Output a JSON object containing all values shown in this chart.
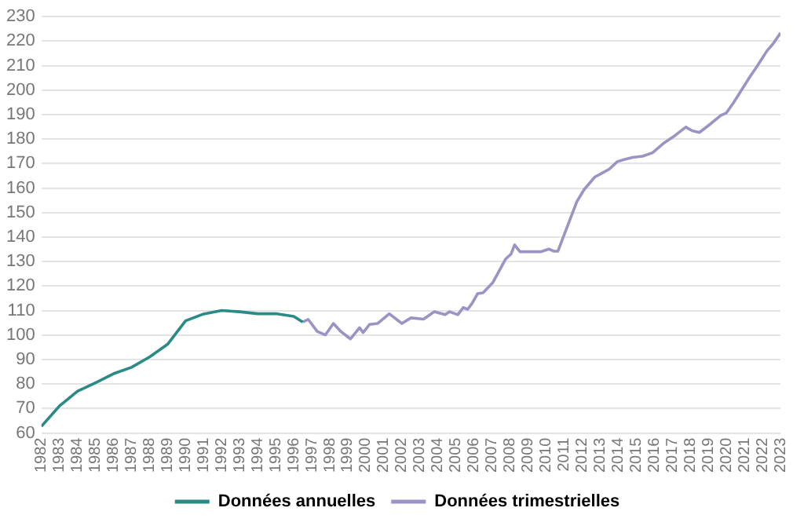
{
  "chart_data": {
    "type": "line",
    "xlim": [
      1982,
      2023
    ],
    "xticks": [
      1982,
      1983,
      1984,
      1985,
      1986,
      1987,
      1988,
      1989,
      1990,
      1991,
      1992,
      1993,
      1994,
      1995,
      1996,
      1997,
      1998,
      1999,
      2000,
      2001,
      2002,
      2003,
      2004,
      2005,
      2006,
      2007,
      2008,
      2009,
      2010,
      2011,
      2012,
      2013,
      2014,
      2015,
      2016,
      2017,
      2018,
      2019,
      2020,
      2021,
      2022,
      2023
    ],
    "ylim": [
      60,
      230
    ],
    "yticks": [
      60,
      70,
      80,
      90,
      100,
      110,
      120,
      130,
      140,
      150,
      160,
      170,
      180,
      190,
      200,
      210,
      220,
      230
    ],
    "grid": "y",
    "legend": "bottom",
    "marker": "none",
    "line_style": "solid",
    "series": [
      {
        "name": "Données annuelles",
        "color": "#2a8a86",
        "x": [
          1982,
          1983,
          1984,
          1985,
          1986,
          1987,
          1988,
          1989,
          1990,
          1991,
          1992,
          1993,
          1994,
          1995,
          1996,
          1996.5
        ],
        "values": [
          62.7,
          71,
          77,
          80.5,
          84.2,
          86.8,
          91,
          96.2,
          105.8,
          108.6,
          110,
          109.5,
          108.7,
          108.7,
          107.6,
          105.3
        ]
      },
      {
        "name": "Données trimestrielles",
        "color": "#9b93c4",
        "x": [
          1996.5,
          1996.8,
          1997.3,
          1997.75,
          1998.2,
          1998.6,
          1999.15,
          1999.65,
          1999.85,
          2000.2,
          2000.65,
          2001.3,
          2002,
          2002.5,
          2003.2,
          2003.8,
          2004.4,
          2004.65,
          2005.1,
          2005.4,
          2005.65,
          2005.9,
          2006.2,
          2006.5,
          2007.05,
          2007.75,
          2008.05,
          2008.25,
          2008.55,
          2009.7,
          2010.15,
          2010.45,
          2010.65,
          2011.7,
          2012.1,
          2012.7,
          2013.5,
          2013.95,
          2014.4,
          2014.8,
          2015.35,
          2015.9,
          2016.5,
          2017.05,
          2017.75,
          2018.1,
          2018.5,
          2019,
          2019.7,
          2020,
          2020.4,
          2021.3,
          2021.7,
          2022.25,
          2022.6,
          2023
        ],
        "values": [
          105.3,
          106.4,
          101.5,
          100,
          104.7,
          101.5,
          98.4,
          103,
          101,
          104.3,
          104.7,
          108.7,
          104.7,
          107,
          106.5,
          109.5,
          108.3,
          109.5,
          108.3,
          111.2,
          110.5,
          113,
          116.9,
          117.2,
          121.5,
          131,
          133,
          136.8,
          134,
          134,
          135.1,
          134.2,
          134.2,
          154.4,
          159.3,
          164.5,
          167.7,
          170.8,
          171.8,
          172.5,
          173,
          174.4,
          178.2,
          180.9,
          184.9,
          183.4,
          182.7,
          185.5,
          189.7,
          190.7,
          194.9,
          205.4,
          209.7,
          216,
          219,
          223.3
        ]
      }
    ]
  }
}
